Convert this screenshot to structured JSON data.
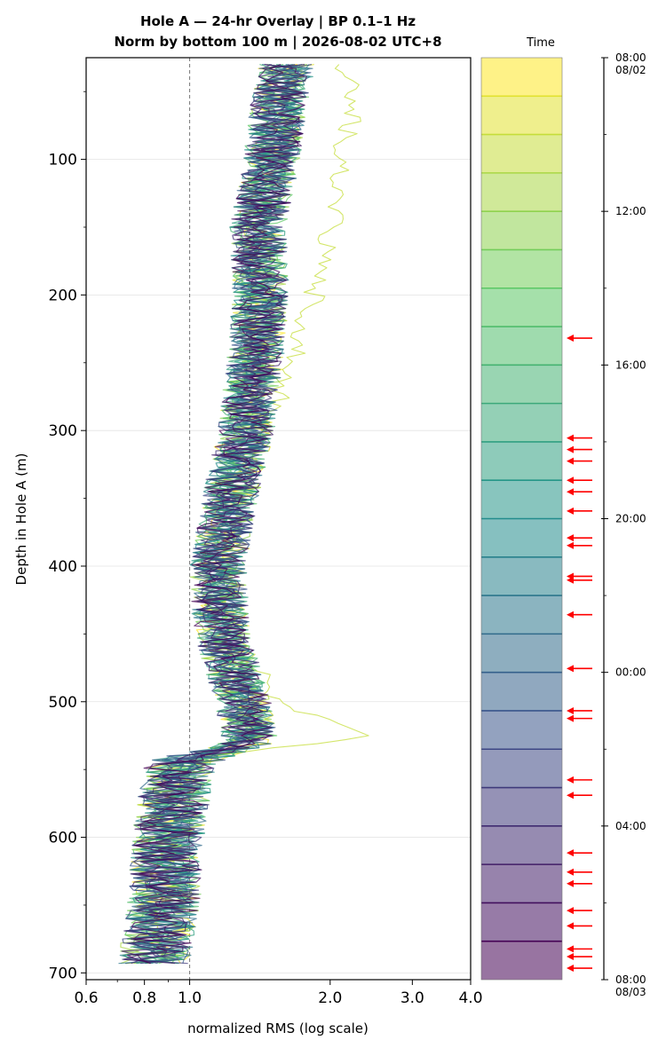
{
  "chart_data": {
    "type": "line",
    "title": "Hole A — 24-hr Overlay  |  BP 0.1–1 Hz",
    "subtitle": "Norm by bottom 100 m  |  2026-08-02 UTC+8",
    "xlabel": "normalized RMS  (log scale)",
    "ylabel": "Depth in Hole A (m)",
    "xscale": "log",
    "xlim": [
      0.6,
      4.0
    ],
    "ylim": [
      705,
      25
    ],
    "x_ticks": [
      {
        "value": 0.6,
        "label": "0.6"
      },
      {
        "value": 0.8,
        "label": "0.8"
      },
      {
        "value": 1.0,
        "label": "1.0"
      },
      {
        "value": 2.0,
        "label": "2.0"
      },
      {
        "value": 3.0,
        "label": "3.0"
      },
      {
        "value": 4.0,
        "label": "4.0"
      }
    ],
    "y_ticks": [
      {
        "value": 100,
        "label": "100"
      },
      {
        "value": 200,
        "label": "200"
      },
      {
        "value": 300,
        "label": "300"
      },
      {
        "value": 400,
        "label": "400"
      },
      {
        "value": 500,
        "label": "500"
      },
      {
        "value": 600,
        "label": "600"
      },
      {
        "value": 700,
        "label": "700"
      }
    ],
    "reference_line_x": 1.0,
    "grid": "horizontal",
    "series_count": 24,
    "series_colormap": "viridis",
    "colorbar": {
      "label": "Time",
      "start_hour": 8,
      "end_hour": 32,
      "bands": 24,
      "ticks": [
        {
          "hour": 8,
          "label": "08:00",
          "sublabel": "08/02"
        },
        {
          "hour": 12,
          "label": "12:00",
          "sublabel": ""
        },
        {
          "hour": 16,
          "label": "16:00",
          "sublabel": ""
        },
        {
          "hour": 20,
          "label": "20:00",
          "sublabel": ""
        },
        {
          "hour": 24,
          "label": "00:00",
          "sublabel": ""
        },
        {
          "hour": 28,
          "label": "04:00",
          "sublabel": ""
        },
        {
          "hour": 32,
          "label": "08:00",
          "sublabel": "08/03"
        }
      ],
      "event_arrow_hours": [
        15.3,
        17.9,
        18.2,
        18.5,
        19.0,
        19.3,
        19.8,
        20.5,
        20.7,
        21.5,
        21.6,
        22.5,
        23.9,
        25.0,
        25.2,
        26.8,
        27.2,
        28.7,
        29.2,
        29.5,
        30.2,
        30.6,
        31.2,
        31.4,
        31.7
      ]
    },
    "profile_anchors": [
      {
        "depth": 30,
        "x": 1.62
      },
      {
        "depth": 60,
        "x": 1.55
      },
      {
        "depth": 100,
        "x": 1.5
      },
      {
        "depth": 150,
        "x": 1.4
      },
      {
        "depth": 200,
        "x": 1.42
      },
      {
        "depth": 250,
        "x": 1.38
      },
      {
        "depth": 300,
        "x": 1.32
      },
      {
        "depth": 350,
        "x": 1.22
      },
      {
        "depth": 400,
        "x": 1.15
      },
      {
        "depth": 450,
        "x": 1.17
      },
      {
        "depth": 500,
        "x": 1.3
      },
      {
        "depth": 530,
        "x": 1.35
      },
      {
        "depth": 545,
        "x": 0.95
      },
      {
        "depth": 600,
        "x": 0.9
      },
      {
        "depth": 650,
        "x": 0.88
      },
      {
        "depth": 690,
        "x": 0.84
      }
    ],
    "outlier_profile_anchors": [
      {
        "depth": 30,
        "x": 2.15
      },
      {
        "depth": 60,
        "x": 2.25
      },
      {
        "depth": 100,
        "x": 2.1
      },
      {
        "depth": 150,
        "x": 2.0
      },
      {
        "depth": 200,
        "x": 1.85
      },
      {
        "depth": 250,
        "x": 1.65
      },
      {
        "depth": 300,
        "x": 1.45
      },
      {
        "depth": 350,
        "x": 1.3
      },
      {
        "depth": 400,
        "x": 1.2
      },
      {
        "depth": 450,
        "x": 1.22
      },
      {
        "depth": 500,
        "x": 1.55
      },
      {
        "depth": 525,
        "x": 2.5
      },
      {
        "depth": 540,
        "x": 1.1
      },
      {
        "depth": 600,
        "x": 0.92
      },
      {
        "depth": 650,
        "x": 0.88
      },
      {
        "depth": 690,
        "x": 0.85
      }
    ],
    "outlier_series_index": 2
  }
}
